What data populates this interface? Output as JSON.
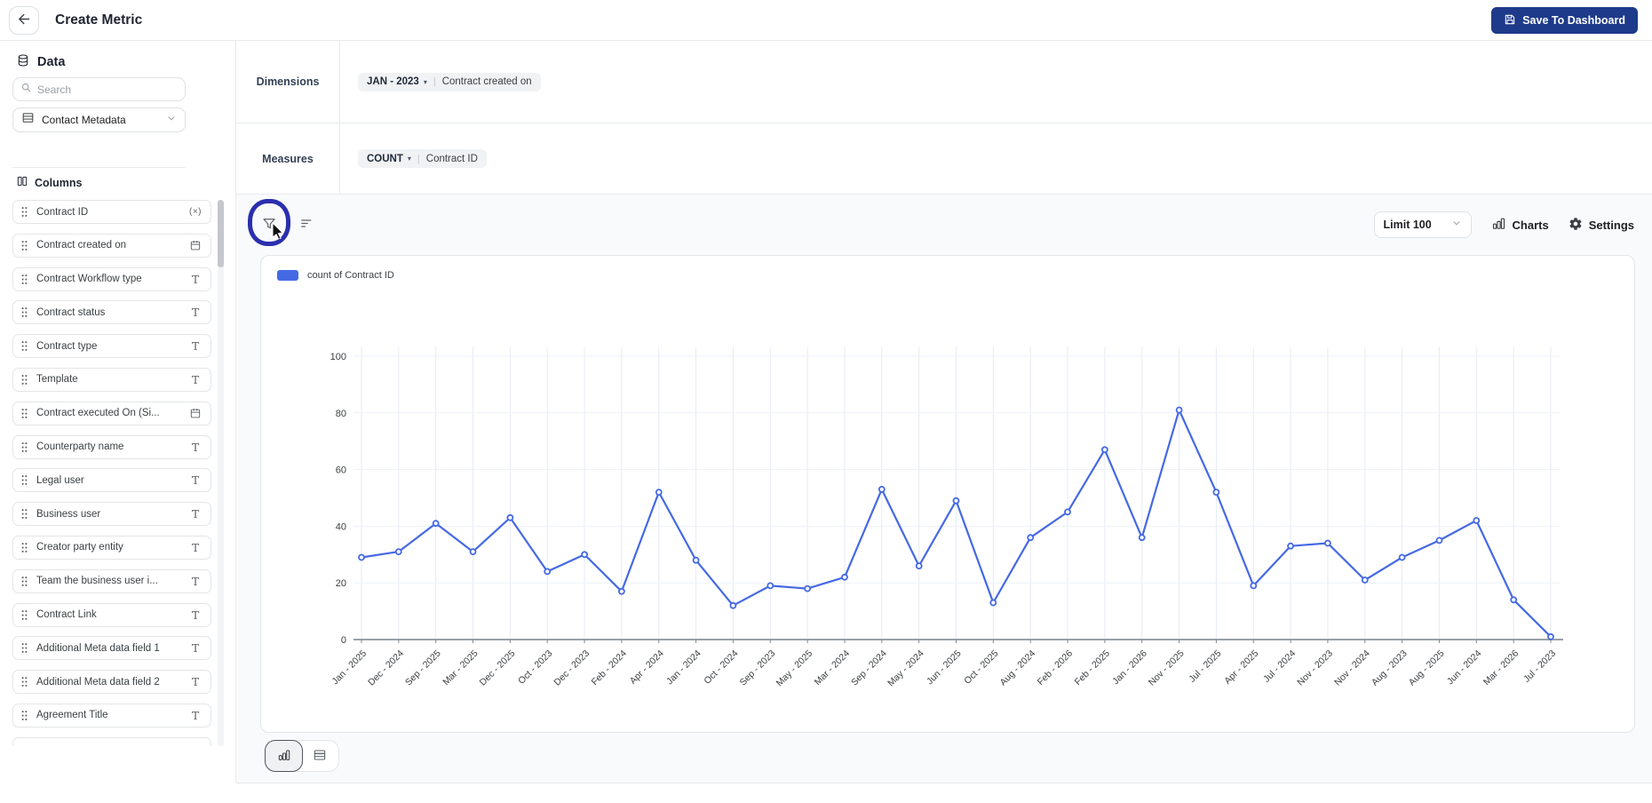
{
  "header": {
    "title": "Create Metric",
    "save_button_label": "Save To Dashboard"
  },
  "sidebar": {
    "section_title": "Data",
    "search_placeholder": "Search",
    "dataset_name": "Contact Metadata",
    "columns_title": "Columns",
    "columns": [
      {
        "label": "Contract ID",
        "type": "function"
      },
      {
        "label": "Contract created on",
        "type": "date"
      },
      {
        "label": "Contract Workflow type",
        "type": "text"
      },
      {
        "label": "Contract status",
        "type": "text"
      },
      {
        "label": "Contract type",
        "type": "text"
      },
      {
        "label": "Template",
        "type": "text"
      },
      {
        "label": "Contract executed On (Si...",
        "type": "date"
      },
      {
        "label": "Counterparty name",
        "type": "text"
      },
      {
        "label": "Legal user",
        "type": "text"
      },
      {
        "label": "Business user",
        "type": "text"
      },
      {
        "label": "Creator party entity",
        "type": "text"
      },
      {
        "label": "Team the business user i...",
        "type": "text"
      },
      {
        "label": "Contract Link",
        "type": "text"
      },
      {
        "label": "Additional Meta data field 1",
        "type": "text"
      },
      {
        "label": "Additional Meta data field 2",
        "type": "text"
      },
      {
        "label": "Agreement Title",
        "type": "text"
      }
    ]
  },
  "builder": {
    "dimensions_label": "Dimensions",
    "dimension_chip": {
      "aggregation": "JAN - 2023",
      "field": "Contract created on"
    },
    "measures_label": "Measures",
    "measure_chip": {
      "aggregation": "COUNT",
      "field": "Contract ID"
    }
  },
  "toolbar": {
    "limit_value": "Limit 100",
    "charts_label": "Charts",
    "settings_label": "Settings"
  },
  "chart_data": {
    "type": "line",
    "title": "",
    "legend": [
      "count of Contract ID"
    ],
    "legend_position": "top-left",
    "grid": true,
    "categories": [
      "Jan - 2025",
      "Dec - 2024",
      "Sep - 2025",
      "Mar - 2025",
      "Dec - 2025",
      "Oct - 2023",
      "Dec - 2023",
      "Feb - 2024",
      "Apr - 2024",
      "Jan - 2024",
      "Oct - 2024",
      "Sep - 2023",
      "May - 2025",
      "Mar - 2024",
      "Sep - 2024",
      "May - 2024",
      "Jun - 2025",
      "Oct - 2025",
      "Aug - 2024",
      "Feb - 2026",
      "Feb - 2025",
      "Jan - 2026",
      "Nov - 2025",
      "Jul - 2025",
      "Apr - 2025",
      "Jul - 2024",
      "Nov - 2023",
      "Nov - 2024",
      "Aug - 2023",
      "Aug - 2025",
      "Jun - 2024",
      "Mar - 2026",
      "Jul - 2023"
    ],
    "values": [
      29,
      31,
      41,
      31,
      43,
      24,
      30,
      17,
      52,
      28,
      12,
      19,
      18,
      22,
      53,
      26,
      49,
      13,
      36,
      45,
      67,
      36,
      81,
      52,
      19,
      33,
      34,
      21,
      29,
      35,
      42,
      14,
      1
    ],
    "xlabel": "",
    "ylabel": "",
    "ylim": [
      0,
      100
    ],
    "yticks": [
      0,
      20,
      40,
      60,
      80,
      100
    ],
    "line_color": "#4569e4"
  },
  "colors": {
    "accent_navy": "#1e3a8a",
    "line_blue": "#4569e4",
    "annotation_blue": "#2b2fae",
    "chip_bg": "#f1f2f4"
  }
}
